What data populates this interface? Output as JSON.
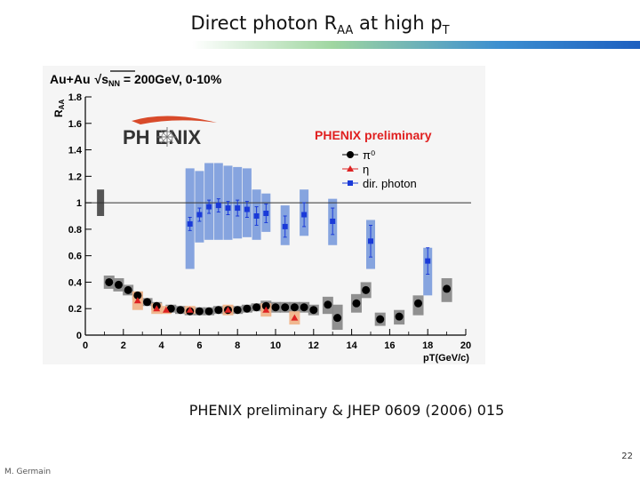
{
  "slide": {
    "title_main": "Direct photon R",
    "title_sub1": "AA",
    "title_mid": " at high p",
    "title_sub2": "T",
    "citation": "PHENIX preliminary & JHEP 0609 (2006) 015",
    "page_number": "22",
    "author": "M. Germain",
    "accent_colors": [
      "#9fd6a0",
      "#3d8fd0",
      "#1d5fc0"
    ]
  },
  "chart_data": {
    "type": "scatter",
    "header_prefix": "Au+Au",
    "header_sqrt": "s",
    "header_sub": "NN",
    "header_suffix": " = 200GeV, 0-10%",
    "logo_text": "PH  ENIX",
    "preliminary_label": "PHENIX preliminary",
    "ylabel": "R",
    "ylabel_sub": "AA",
    "xlabel": "pT(GeV/c)",
    "xlim": [
      0,
      20
    ],
    "ylim": [
      0,
      1.8
    ],
    "x_ticks": [
      0,
      2,
      4,
      6,
      8,
      10,
      12,
      14,
      16,
      18,
      20
    ],
    "x_tick_labels": [
      "0",
      "2",
      "4",
      "6",
      "8",
      "10",
      "12",
      "14",
      "16",
      "18",
      "20"
    ],
    "y_ticks": [
      0,
      0.2,
      0.4,
      0.6,
      0.8,
      1,
      1.2,
      1.4,
      1.6,
      1.8
    ],
    "y_tick_labels": [
      "0",
      "0.2",
      "0.4",
      "0.6",
      "0.8",
      "1",
      "1.2",
      "1.4",
      "1.6",
      "1.8"
    ],
    "reference_line": 1,
    "norm_box": {
      "x": 0.8,
      "lo": 0.9,
      "hi": 1.1,
      "color": "#555555"
    },
    "legend": [
      {
        "label": "π⁰",
        "marker": "circle",
        "color": "#000000"
      },
      {
        "label": "η",
        "marker": "triangle",
        "color": "#dd2222"
      },
      {
        "label": "dir. photon",
        "marker": "square",
        "color": "#1a3ad8"
      }
    ],
    "series": [
      {
        "name": "dir. photon",
        "color": "#1a3ad8",
        "box_color": "#7f9fdd",
        "points": [
          {
            "x": 5.5,
            "y": 0.84,
            "lo": 0.5,
            "hi": 1.26,
            "err": 0.05
          },
          {
            "x": 6.0,
            "y": 0.91,
            "lo": 0.7,
            "hi": 1.24,
            "err": 0.05
          },
          {
            "x": 6.5,
            "y": 0.97,
            "lo": 0.72,
            "hi": 1.3,
            "err": 0.05
          },
          {
            "x": 7.0,
            "y": 0.98,
            "lo": 0.72,
            "hi": 1.3,
            "err": 0.05
          },
          {
            "x": 7.5,
            "y": 0.96,
            "lo": 0.72,
            "hi": 1.28,
            "err": 0.05
          },
          {
            "x": 8.0,
            "y": 0.96,
            "lo": 0.73,
            "hi": 1.27,
            "err": 0.06
          },
          {
            "x": 8.5,
            "y": 0.95,
            "lo": 0.74,
            "hi": 1.26,
            "err": 0.06
          },
          {
            "x": 9.0,
            "y": 0.9,
            "lo": 0.72,
            "hi": 1.1,
            "err": 0.07
          },
          {
            "x": 9.5,
            "y": 0.92,
            "lo": 0.78,
            "hi": 1.07,
            "err": 0.07
          },
          {
            "x": 10.5,
            "y": 0.82,
            "lo": 0.68,
            "hi": 0.98,
            "err": 0.08
          },
          {
            "x": 11.5,
            "y": 0.91,
            "lo": 0.75,
            "hi": 1.1,
            "err": 0.09
          },
          {
            "x": 13.0,
            "y": 0.86,
            "lo": 0.68,
            "hi": 1.03,
            "err": 0.1
          },
          {
            "x": 15.0,
            "y": 0.71,
            "lo": 0.5,
            "hi": 0.87,
            "err": 0.12
          },
          {
            "x": 18.0,
            "y": 0.56,
            "lo": 0.3,
            "hi": 0.66,
            "err": 0.1
          }
        ]
      },
      {
        "name": "π⁰",
        "color": "#000000",
        "box_color": "#8a8a8a",
        "points": [
          {
            "x": 1.25,
            "y": 0.4,
            "lo": 0.35,
            "hi": 0.45
          },
          {
            "x": 1.75,
            "y": 0.38,
            "lo": 0.33,
            "hi": 0.43
          },
          {
            "x": 2.25,
            "y": 0.34,
            "lo": 0.3,
            "hi": 0.38
          },
          {
            "x": 2.75,
            "y": 0.3,
            "lo": 0.27,
            "hi": 0.33
          },
          {
            "x": 3.25,
            "y": 0.25,
            "lo": 0.22,
            "hi": 0.28
          },
          {
            "x": 3.75,
            "y": 0.22,
            "lo": 0.19,
            "hi": 0.25
          },
          {
            "x": 4.5,
            "y": 0.2,
            "lo": 0.17,
            "hi": 0.23
          },
          {
            "x": 5.0,
            "y": 0.19,
            "lo": 0.16,
            "hi": 0.22
          },
          {
            "x": 5.5,
            "y": 0.18,
            "lo": 0.15,
            "hi": 0.21
          },
          {
            "x": 6.0,
            "y": 0.18,
            "lo": 0.15,
            "hi": 0.21
          },
          {
            "x": 6.5,
            "y": 0.18,
            "lo": 0.15,
            "hi": 0.21
          },
          {
            "x": 7.0,
            "y": 0.19,
            "lo": 0.16,
            "hi": 0.22
          },
          {
            "x": 7.5,
            "y": 0.19,
            "lo": 0.16,
            "hi": 0.22
          },
          {
            "x": 8.0,
            "y": 0.19,
            "lo": 0.16,
            "hi": 0.22
          },
          {
            "x": 8.5,
            "y": 0.2,
            "lo": 0.17,
            "hi": 0.23
          },
          {
            "x": 9.0,
            "y": 0.21,
            "lo": 0.18,
            "hi": 0.24
          },
          {
            "x": 9.5,
            "y": 0.22,
            "lo": 0.18,
            "hi": 0.26
          },
          {
            "x": 10.0,
            "y": 0.21,
            "lo": 0.17,
            "hi": 0.25
          },
          {
            "x": 10.5,
            "y": 0.21,
            "lo": 0.17,
            "hi": 0.25
          },
          {
            "x": 11.0,
            "y": 0.21,
            "lo": 0.17,
            "hi": 0.25
          },
          {
            "x": 11.5,
            "y": 0.21,
            "lo": 0.17,
            "hi": 0.25
          },
          {
            "x": 12.0,
            "y": 0.19,
            "lo": 0.15,
            "hi": 0.23
          },
          {
            "x": 12.75,
            "y": 0.23,
            "lo": 0.16,
            "hi": 0.29
          },
          {
            "x": 13.25,
            "y": 0.13,
            "lo": 0.04,
            "hi": 0.23
          },
          {
            "x": 14.25,
            "y": 0.24,
            "lo": 0.17,
            "hi": 0.31
          },
          {
            "x": 14.75,
            "y": 0.34,
            "lo": 0.28,
            "hi": 0.4
          },
          {
            "x": 15.5,
            "y": 0.12,
            "lo": 0.07,
            "hi": 0.17
          },
          {
            "x": 16.5,
            "y": 0.14,
            "lo": 0.08,
            "hi": 0.19
          },
          {
            "x": 17.5,
            "y": 0.24,
            "lo": 0.15,
            "hi": 0.3
          },
          {
            "x": 19.0,
            "y": 0.35,
            "lo": 0.25,
            "hi": 0.43
          }
        ]
      },
      {
        "name": "η",
        "color": "#dd2222",
        "box_color": "#f0b48a",
        "points": [
          {
            "x": 2.75,
            "y": 0.26,
            "lo": 0.19,
            "hi": 0.33
          },
          {
            "x": 3.75,
            "y": 0.2,
            "lo": 0.16,
            "hi": 0.24
          },
          {
            "x": 4.25,
            "y": 0.19,
            "lo": 0.16,
            "hi": 0.22
          },
          {
            "x": 5.5,
            "y": 0.19,
            "lo": 0.16,
            "hi": 0.22
          },
          {
            "x": 7.5,
            "y": 0.19,
            "lo": 0.15,
            "hi": 0.23
          },
          {
            "x": 9.5,
            "y": 0.19,
            "lo": 0.14,
            "hi": 0.24
          },
          {
            "x": 11.0,
            "y": 0.13,
            "lo": 0.08,
            "hi": 0.18
          }
        ]
      }
    ]
  }
}
